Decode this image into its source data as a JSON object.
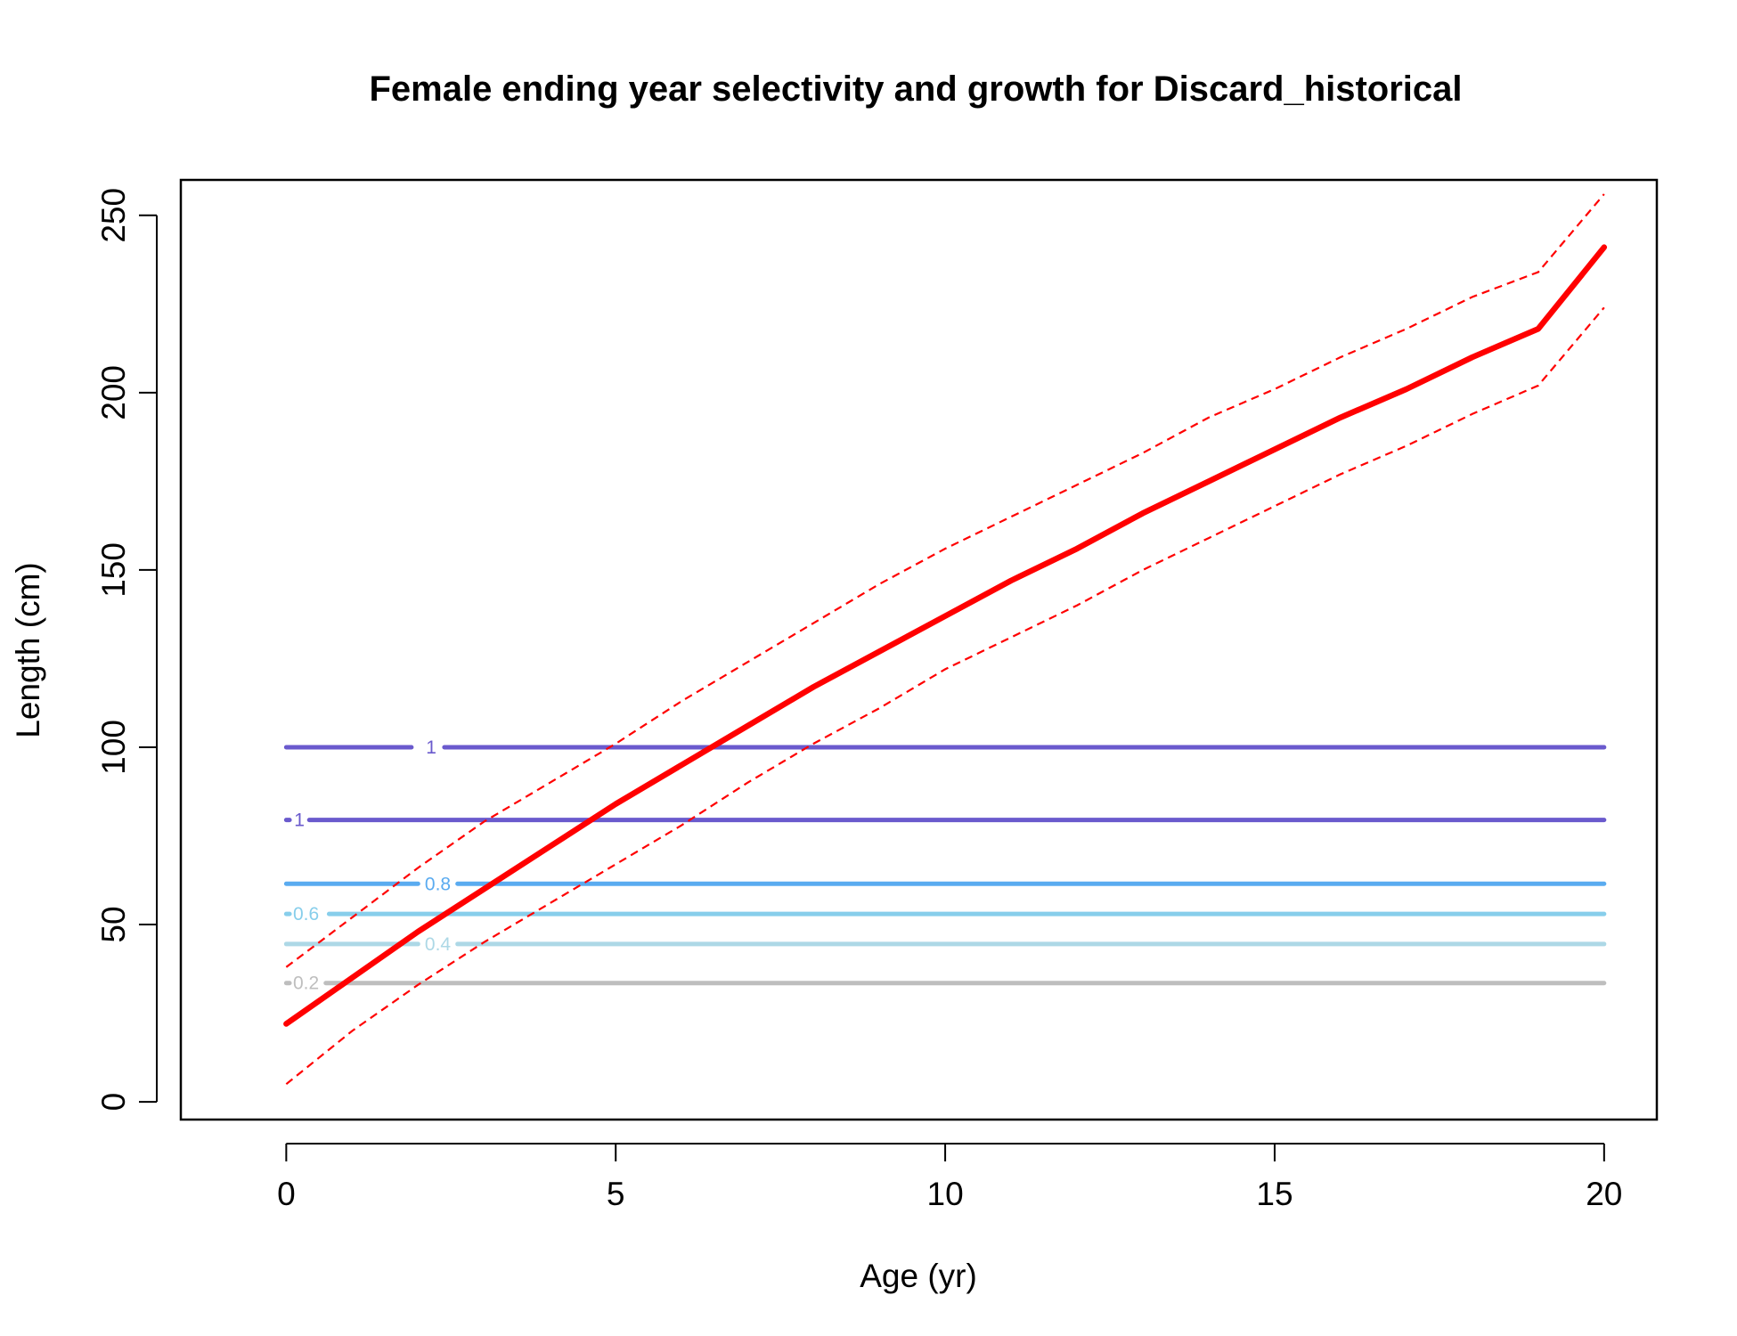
{
  "chart_data": {
    "type": "line",
    "title": "Female ending year selectivity and growth for Discard_historical",
    "xlabel": "Age (yr)",
    "ylabel": "Length (cm)",
    "xlim": [
      -1.6,
      20.8
    ],
    "ylim": [
      -5,
      260
    ],
    "x_ticks": [
      0,
      5,
      10,
      15,
      20
    ],
    "y_ticks": [
      0,
      50,
      100,
      150,
      200,
      250
    ],
    "grid": false,
    "growth": {
      "color": "#ff0000",
      "x": [
        0,
        1,
        2,
        3,
        4,
        5,
        6,
        7,
        8,
        9,
        10,
        11,
        12,
        13,
        14,
        15,
        16,
        17,
        18,
        19,
        20
      ],
      "mean": [
        22,
        35,
        48,
        60,
        72,
        84,
        95,
        106,
        117,
        127,
        137,
        147,
        156,
        166,
        175,
        184,
        193,
        201,
        210,
        218,
        241
      ],
      "upper": [
        38,
        52,
        66,
        79,
        90,
        101,
        113,
        124,
        135,
        146,
        156,
        165,
        174,
        183,
        193,
        201,
        210,
        218,
        227,
        234,
        256
      ],
      "lower": [
        5,
        20,
        33,
        45,
        56,
        67,
        78,
        90,
        101,
        111,
        122,
        131,
        140,
        150,
        159,
        168,
        177,
        185,
        194,
        202,
        224
      ]
    },
    "selectivity_contours": [
      {
        "label": "1",
        "y": 100,
        "color": "#6a5acd",
        "label_x": 2.2,
        "gap": [
          1.9,
          2.4
        ]
      },
      {
        "label": "1",
        "y": 79.5,
        "color": "#6a5acd",
        "label_x": 0.2,
        "gap": [
          0.05,
          0.35
        ]
      },
      {
        "label": "0.8",
        "y": 61.5,
        "color": "#5aabf0",
        "label_x": 2.3,
        "gap": [
          2.0,
          2.6
        ]
      },
      {
        "label": "0.6",
        "y": 53,
        "color": "#87ceeb",
        "label_x": 0.3,
        "gap": [
          0.05,
          0.65
        ]
      },
      {
        "label": "0.4",
        "y": 44.5,
        "color": "#add8e6",
        "label_x": 2.3,
        "gap": [
          2.0,
          2.6
        ]
      },
      {
        "label": "0.2",
        "y": 33.5,
        "color": "#bebebe",
        "label_x": 0.3,
        "gap": [
          0.05,
          0.6
        ]
      }
    ]
  }
}
